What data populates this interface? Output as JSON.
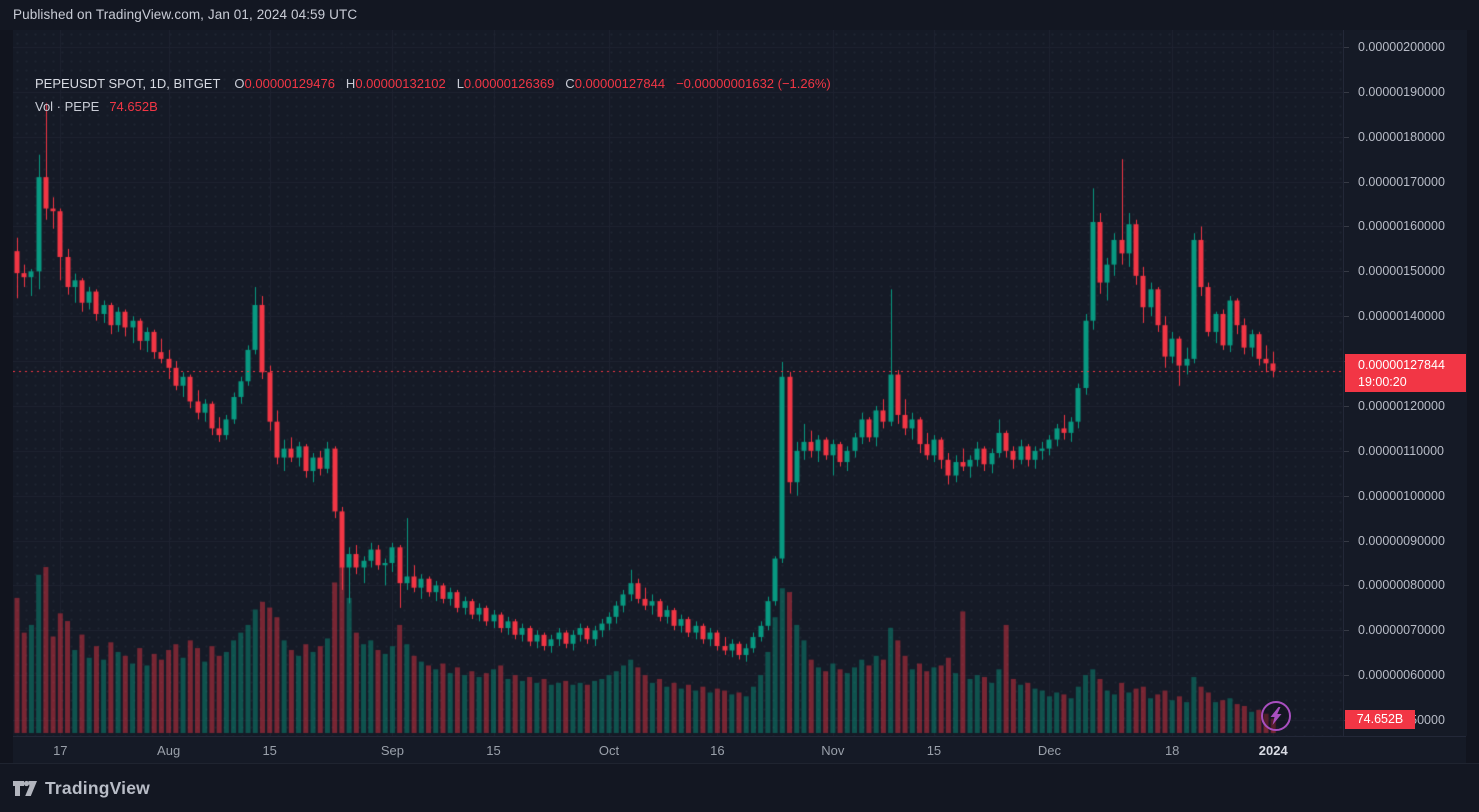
{
  "header": {
    "published_line": "Published on TradingView.com, Jan 01, 2024 04:59 UTC"
  },
  "legend": {
    "symbol_line": "PEPEUSDT SPOT, 1D, BITGET",
    "ohlc": {
      "o_label": "O",
      "o": "0.00000129476",
      "h_label": "H",
      "h": "0.00000132102",
      "l_label": "L",
      "l": "0.00000126369",
      "c_label": "C",
      "c": "0.00000127844",
      "change": "−0.00000001632 (−1.26%)"
    },
    "volume_row": {
      "label": "Vol · PEPE",
      "value": "74.652B"
    }
  },
  "price_axis": {
    "ticks": [
      "0.00000200000",
      "0.00000190000",
      "0.00000180000",
      "0.00000170000",
      "0.00000160000",
      "0.00000150000",
      "0.00000140000",
      "0.00000130000",
      "0.00000120000",
      "0.00000110000",
      "0.00000100000",
      "0.00000090000",
      "0.00000080000",
      "0.00000070000",
      "0.00000060000",
      "0.00000050000"
    ],
    "badge": {
      "price": "0.00000127844",
      "countdown": "19:00:20"
    },
    "volume_badge": "74.652B"
  },
  "time_axis": {
    "ticks": [
      {
        "label": "17",
        "date": "2023-07-17",
        "major": false
      },
      {
        "label": "Aug",
        "date": "2023-08-01",
        "major": false
      },
      {
        "label": "15",
        "date": "2023-08-15",
        "major": false
      },
      {
        "label": "Sep",
        "date": "2023-09-01",
        "major": false
      },
      {
        "label": "15",
        "date": "2023-09-15",
        "major": false
      },
      {
        "label": "Oct",
        "date": "2023-10-01",
        "major": false
      },
      {
        "label": "16",
        "date": "2023-10-16",
        "major": false
      },
      {
        "label": "Nov",
        "date": "2023-11-01",
        "major": false
      },
      {
        "label": "15",
        "date": "2023-11-15",
        "major": false
      },
      {
        "label": "Dec",
        "date": "2023-12-01",
        "major": false
      },
      {
        "label": "18",
        "date": "2023-12-18",
        "major": false
      },
      {
        "label": "2024",
        "date": "2024-01-01",
        "major": true
      }
    ]
  },
  "footer": {
    "brand": "TradingView"
  },
  "icons": {
    "boost": "lightning-bolt",
    "brand": "tradingview-logo"
  },
  "colors": {
    "background": "#11141e",
    "topbar": "#131722",
    "pane": "#151a26",
    "grid": "#1e2330",
    "text_primary": "#d8dbe3",
    "text_secondary": "#9aa0aa",
    "up": "#089981",
    "down": "#f23645",
    "volume_up": "rgba(8,153,129,0.45)",
    "volume_down": "rgba(242,54,69,0.45)",
    "price_line": "#f23645",
    "badge_red": "#f23645",
    "boost_purple": "#a94fc0"
  },
  "chart_data": {
    "type": "candlestick_with_volume",
    "symbol": "PEPEUSDT",
    "market": "SPOT",
    "interval": "1D",
    "exchange": "BITGET",
    "price_unit_e8": true,
    "note": "prices stored as value × 1e-8 USDT; volumes in billions of PEPE; bars before the last are visual estimates, last bar matches legend",
    "start_date": "2023-07-11",
    "current_price": "0.00000127844",
    "countdown": "19:00:20",
    "last_bar": {
      "open": "0.00000129476",
      "high": "0.00000132102",
      "low": "0.00000126369",
      "close": "0.00000127844",
      "change": "-0.00000001632",
      "change_pct": "-1.26%",
      "volume": "74.652B"
    },
    "y_axis": {
      "tick_min_e8": 50,
      "tick_max_e8": 200,
      "tick_step_e8": 10,
      "grid": true,
      "side": "right"
    },
    "candles": [
      [
        154.5,
        157.5,
        144.0,
        149.6,
        700
      ],
      [
        149.6,
        151.5,
        146.5,
        148.7,
        520
      ],
      [
        148.7,
        150.5,
        144.5,
        150.0,
        560
      ],
      [
        150.0,
        176.0,
        146.0,
        171.0,
        820
      ],
      [
        171.0,
        187.5,
        161.5,
        164.0,
        860
      ],
      [
        164.0,
        166.5,
        159.5,
        163.4,
        500
      ],
      [
        163.4,
        164.0,
        148.0,
        153.2,
        620
      ],
      [
        153.2,
        155.0,
        144.8,
        146.5,
        580
      ],
      [
        146.5,
        149.5,
        143.0,
        148.0,
        430
      ],
      [
        148.0,
        148.5,
        141.0,
        143.0,
        510
      ],
      [
        143.0,
        146.5,
        141.5,
        145.5,
        390
      ],
      [
        145.5,
        146.0,
        139.0,
        140.5,
        450
      ],
      [
        140.5,
        143.5,
        138.5,
        142.5,
        380
      ],
      [
        142.5,
        143.0,
        136.0,
        138.0,
        470
      ],
      [
        138.0,
        142.0,
        136.5,
        141.0,
        420
      ],
      [
        141.0,
        141.5,
        135.5,
        137.5,
        400
      ],
      [
        137.5,
        140.0,
        134.0,
        139.0,
        360
      ],
      [
        139.0,
        139.5,
        132.5,
        134.5,
        440
      ],
      [
        134.5,
        137.5,
        132.0,
        136.5,
        350
      ],
      [
        136.5,
        137.0,
        130.5,
        132.0,
        410
      ],
      [
        132.0,
        135.0,
        129.5,
        130.5,
        380
      ],
      [
        130.5,
        132.5,
        126.0,
        128.5,
        430
      ],
      [
        128.5,
        130.0,
        123.5,
        124.5,
        460
      ],
      [
        124.5,
        127.5,
        122.0,
        126.5,
        390
      ],
      [
        126.5,
        127.0,
        119.5,
        121.0,
        480
      ],
      [
        121.0,
        123.5,
        117.0,
        118.5,
        440
      ],
      [
        118.5,
        121.5,
        116.5,
        120.5,
        370
      ],
      [
        120.5,
        121.0,
        113.5,
        115.0,
        450
      ],
      [
        115.0,
        117.5,
        112.0,
        113.5,
        400
      ],
      [
        113.5,
        118.0,
        112.5,
        117.0,
        420
      ],
      [
        117.0,
        123.0,
        116.0,
        122.0,
        480
      ],
      [
        122.0,
        126.5,
        120.5,
        125.5,
        520
      ],
      [
        125.5,
        133.5,
        124.5,
        132.5,
        560
      ],
      [
        132.5,
        146.5,
        131.5,
        142.5,
        640
      ],
      [
        142.5,
        144.5,
        126.0,
        127.5,
        680
      ],
      [
        127.5,
        129.0,
        114.5,
        116.5,
        650
      ],
      [
        116.5,
        119.0,
        107.0,
        108.5,
        600
      ],
      [
        108.5,
        112.5,
        105.5,
        110.5,
        480
      ],
      [
        110.5,
        113.0,
        107.5,
        108.5,
        430
      ],
      [
        108.5,
        112.0,
        106.5,
        111.0,
        400
      ],
      [
        111.0,
        111.5,
        104.0,
        105.5,
        460
      ],
      [
        105.5,
        109.5,
        103.0,
        108.5,
        420
      ],
      [
        108.5,
        110.0,
        104.5,
        106.0,
        450
      ],
      [
        106.0,
        112.0,
        105.0,
        110.5,
        490
      ],
      [
        110.5,
        111.0,
        95.0,
        96.5,
        780
      ],
      [
        96.5,
        97.5,
        79.0,
        84.0,
        860
      ],
      [
        84.0,
        88.5,
        76.0,
        87.0,
        700
      ],
      [
        87.0,
        89.0,
        82.5,
        84.0,
        520
      ],
      [
        84.0,
        86.5,
        80.5,
        85.5,
        460
      ],
      [
        85.5,
        89.5,
        84.0,
        88.0,
        480
      ],
      [
        88.0,
        89.0,
        83.5,
        84.5,
        430
      ],
      [
        84.5,
        86.0,
        80.0,
        85.0,
        410
      ],
      [
        85.0,
        89.5,
        83.0,
        88.5,
        450
      ],
      [
        88.5,
        89.0,
        75.0,
        80.5,
        560
      ],
      [
        80.5,
        95.0,
        79.0,
        82.0,
        460
      ],
      [
        82.0,
        84.5,
        78.5,
        79.5,
        400
      ],
      [
        79.5,
        82.5,
        77.0,
        81.5,
        370
      ],
      [
        81.5,
        82.0,
        77.5,
        78.5,
        350
      ],
      [
        78.5,
        81.0,
        76.5,
        80.0,
        330
      ],
      [
        80.0,
        80.5,
        76.0,
        77.0,
        360
      ],
      [
        77.0,
        79.5,
        75.5,
        78.5,
        310
      ],
      [
        78.5,
        79.0,
        74.0,
        75.0,
        340
      ],
      [
        75.0,
        77.5,
        73.5,
        76.5,
        300
      ],
      [
        76.5,
        77.0,
        72.5,
        73.5,
        320
      ],
      [
        73.5,
        76.0,
        72.0,
        75.0,
        290
      ],
      [
        75.0,
        75.5,
        71.0,
        72.0,
        310
      ],
      [
        72.0,
        74.5,
        70.5,
        73.5,
        330
      ],
      [
        73.5,
        74.0,
        69.5,
        70.5,
        350
      ],
      [
        70.5,
        73.0,
        69.0,
        72.0,
        280
      ],
      [
        72.0,
        72.5,
        68.0,
        69.0,
        300
      ],
      [
        69.0,
        71.5,
        67.5,
        70.5,
        270
      ],
      [
        70.5,
        71.0,
        66.5,
        67.5,
        290
      ],
      [
        67.5,
        70.0,
        66.0,
        69.0,
        260
      ],
      [
        69.0,
        69.5,
        65.5,
        66.5,
        280
      ],
      [
        66.5,
        69.0,
        65.0,
        68.0,
        250
      ],
      [
        68.0,
        70.5,
        66.5,
        69.5,
        260
      ],
      [
        69.5,
        70.0,
        66.0,
        67.0,
        270
      ],
      [
        67.0,
        70.0,
        65.5,
        69.0,
        250
      ],
      [
        69.0,
        71.5,
        67.5,
        70.5,
        260
      ],
      [
        70.5,
        71.0,
        67.0,
        68.0,
        250
      ],
      [
        68.0,
        71.0,
        66.5,
        70.0,
        270
      ],
      [
        70.0,
        72.5,
        68.5,
        71.5,
        280
      ],
      [
        71.5,
        74.0,
        70.0,
        73.0,
        300
      ],
      [
        73.0,
        76.5,
        71.5,
        75.5,
        320
      ],
      [
        75.5,
        79.0,
        74.0,
        78.0,
        350
      ],
      [
        78.0,
        83.5,
        76.5,
        80.5,
        380
      ],
      [
        80.5,
        81.5,
        76.0,
        77.0,
        340
      ],
      [
        77.0,
        79.5,
        74.5,
        75.5,
        300
      ],
      [
        75.5,
        78.0,
        73.5,
        76.5,
        260
      ],
      [
        76.5,
        77.0,
        72.0,
        73.0,
        280
      ],
      [
        73.0,
        75.5,
        71.5,
        74.5,
        240
      ],
      [
        74.5,
        75.0,
        70.0,
        71.0,
        260
      ],
      [
        71.0,
        73.5,
        69.5,
        72.5,
        230
      ],
      [
        72.5,
        73.0,
        68.5,
        69.5,
        250
      ],
      [
        69.5,
        72.0,
        68.0,
        71.0,
        220
      ],
      [
        71.0,
        71.5,
        67.0,
        68.0,
        240
      ],
      [
        68.0,
        70.5,
        66.5,
        69.5,
        210
      ],
      [
        69.5,
        70.0,
        65.5,
        66.5,
        230
      ],
      [
        66.5,
        68.5,
        64.5,
        65.5,
        220
      ],
      [
        65.5,
        68.0,
        64.0,
        67.0,
        200
      ],
      [
        67.0,
        67.5,
        63.5,
        64.5,
        210
      ],
      [
        64.5,
        67.0,
        63.0,
        66.0,
        190
      ],
      [
        66.0,
        69.5,
        65.0,
        68.5,
        240
      ],
      [
        68.5,
        72.0,
        67.5,
        71.0,
        300
      ],
      [
        71.0,
        77.5,
        70.0,
        76.5,
        420
      ],
      [
        76.5,
        86.5,
        75.5,
        86.0,
        600
      ],
      [
        86.0,
        129.8,
        85.0,
        126.5,
        750
      ],
      [
        126.5,
        127.6,
        100.5,
        103.0,
        730
      ],
      [
        103.0,
        112.0,
        100.0,
        110.0,
        560
      ],
      [
        110.0,
        116.0,
        108.0,
        112.0,
        480
      ],
      [
        112.0,
        114.5,
        108.5,
        110.0,
        380
      ],
      [
        110.0,
        113.5,
        107.5,
        112.5,
        340
      ],
      [
        112.5,
        113.0,
        108.0,
        109.0,
        320
      ],
      [
        109.0,
        112.5,
        104.5,
        111.5,
        360
      ],
      [
        111.5,
        112.0,
        106.5,
        107.5,
        330
      ],
      [
        107.5,
        111.0,
        105.5,
        110.0,
        310
      ],
      [
        110.0,
        114.0,
        108.5,
        113.0,
        340
      ],
      [
        113.0,
        118.5,
        111.5,
        117.0,
        380
      ],
      [
        117.0,
        117.5,
        112.0,
        113.0,
        350
      ],
      [
        113.0,
        120.0,
        111.0,
        119.0,
        400
      ],
      [
        119.0,
        121.5,
        115.0,
        116.5,
        380
      ],
      [
        116.5,
        146.0,
        115.5,
        127.0,
        545
      ],
      [
        127.0,
        128.0,
        116.0,
        118.0,
        480
      ],
      [
        118.0,
        121.5,
        113.5,
        115.0,
        400
      ],
      [
        115.0,
        118.5,
        112.5,
        117.0,
        330
      ],
      [
        117.0,
        117.5,
        109.5,
        111.5,
        360
      ],
      [
        111.5,
        114.0,
        108.0,
        109.0,
        320
      ],
      [
        109.0,
        113.5,
        107.5,
        112.5,
        340
      ],
      [
        112.5,
        113.0,
        106.0,
        108.0,
        350
      ],
      [
        108.0,
        109.5,
        102.5,
        104.5,
        390
      ],
      [
        104.5,
        109.0,
        103.0,
        107.5,
        310
      ],
      [
        107.5,
        110.5,
        105.5,
        106.5,
        630
      ],
      [
        106.5,
        109.0,
        104.0,
        108.0,
        280
      ],
      [
        108.0,
        112.0,
        106.5,
        110.5,
        300
      ],
      [
        110.5,
        111.0,
        105.5,
        107.0,
        290
      ],
      [
        107.0,
        110.5,
        105.0,
        109.5,
        260
      ],
      [
        109.5,
        117.0,
        108.5,
        114.0,
        330
      ],
      [
        114.0,
        114.5,
        108.5,
        110.0,
        560
      ],
      [
        110.0,
        111.0,
        106.0,
        108.0,
        280
      ],
      [
        108.0,
        112.5,
        107.0,
        111.0,
        250
      ],
      [
        111.0,
        111.5,
        106.5,
        108.0,
        260
      ],
      [
        108.0,
        111.0,
        106.0,
        110.0,
        230
      ],
      [
        110.0,
        112.0,
        108.0,
        110.5,
        220
      ],
      [
        110.5,
        113.5,
        109.0,
        112.5,
        190
      ],
      [
        112.5,
        116.0,
        111.0,
        115.0,
        210
      ],
      [
        115.0,
        118.0,
        112.5,
        114.0,
        200
      ],
      [
        114.0,
        117.5,
        112.0,
        116.5,
        180
      ],
      [
        116.5,
        125.0,
        115.0,
        124.0,
        240
      ],
      [
        124.0,
        140.5,
        122.5,
        139.0,
        300
      ],
      [
        139.0,
        168.5,
        137.0,
        161.0,
        330
      ],
      [
        161.0,
        163.0,
        145.0,
        147.5,
        280
      ],
      [
        147.5,
        153.0,
        143.5,
        151.5,
        220
      ],
      [
        151.5,
        158.5,
        149.0,
        157.0,
        200
      ],
      [
        157.0,
        175.0,
        151.5,
        154.0,
        260
      ],
      [
        154.0,
        163.0,
        151.0,
        160.5,
        210
      ],
      [
        160.5,
        161.5,
        147.0,
        149.0,
        230
      ],
      [
        149.0,
        151.0,
        138.5,
        142.0,
        240
      ],
      [
        142.0,
        147.5,
        140.0,
        146.0,
        180
      ],
      [
        146.0,
        146.5,
        136.5,
        138.0,
        200
      ],
      [
        138.0,
        140.0,
        128.5,
        131.0,
        220
      ],
      [
        131.0,
        136.5,
        129.5,
        135.0,
        170
      ],
      [
        135.0,
        135.5,
        124.5,
        129.0,
        190
      ],
      [
        129.0,
        133.0,
        127.0,
        130.5,
        160
      ],
      [
        130.5,
        158.5,
        129.5,
        157.0,
        290
      ],
      [
        157.0,
        160.0,
        144.5,
        146.5,
        240
      ],
      [
        146.5,
        147.5,
        135.5,
        136.5,
        210
      ],
      [
        136.5,
        141.0,
        134.0,
        140.5,
        160
      ],
      [
        140.5,
        141.5,
        132.5,
        133.5,
        170
      ],
      [
        133.5,
        144.5,
        132.0,
        143.5,
        180
      ],
      [
        143.5,
        144.0,
        136.0,
        138.0,
        150
      ],
      [
        138.0,
        139.5,
        131.5,
        133.0,
        140
      ],
      [
        133.0,
        137.0,
        131.0,
        136.0,
        110
      ],
      [
        136.0,
        136.5,
        129.0,
        130.5,
        120
      ],
      [
        130.5,
        133.5,
        127.5,
        129.5,
        100
      ],
      [
        129.476,
        132.102,
        126.369,
        127.844,
        74.652
      ]
    ]
  }
}
